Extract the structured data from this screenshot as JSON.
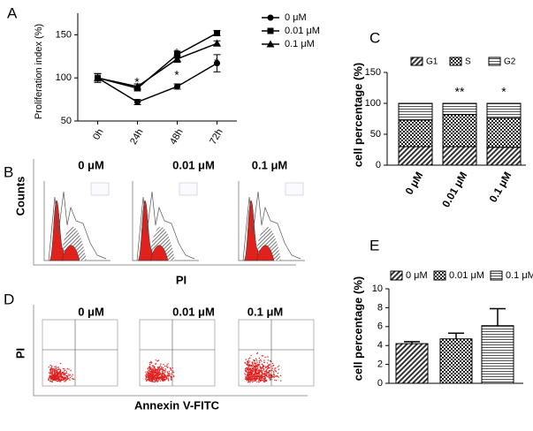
{
  "chart_data": [
    {
      "type": "line",
      "panel": "A",
      "y_label": "Proliferation index (%)",
      "categories": [
        "0h",
        "24h",
        "48h",
        "72h"
      ],
      "series": [
        {
          "name": "0 μM",
          "color": "#000000",
          "marker": "circle",
          "values": [
            100,
            72,
            90,
            117
          ],
          "errors": [
            5,
            3,
            3,
            10
          ]
        },
        {
          "name": "0.01 μM",
          "color": "#000000",
          "marker": "square",
          "values": [
            100,
            88,
            127,
            152
          ],
          "errors": [
            5,
            3,
            4,
            3
          ]
        },
        {
          "name": "0.1 μM",
          "color": "#000000",
          "marker": "triangle",
          "values": [
            100,
            90,
            122,
            140
          ],
          "errors": [
            5,
            3,
            4,
            3
          ]
        }
      ],
      "ylim": [
        50,
        175
      ],
      "yticks": [
        50,
        100,
        150
      ],
      "annotations": [
        {
          "category": "24h",
          "text": "*"
        },
        {
          "category": "48h",
          "text": "*"
        },
        {
          "category": "48h",
          "text": "*"
        },
        {
          "category": "72h",
          "text": "*"
        },
        {
          "category": "72h",
          "text": "*"
        }
      ]
    },
    {
      "type": "stacked_bar",
      "panel": "C",
      "y_label": "cell percentage (%)",
      "categories": [
        "0 μM",
        "0.01 μM",
        "0.1 μM"
      ],
      "series": [
        {
          "name": "G1",
          "pattern": "diagonal",
          "values": [
            30,
            30,
            29
          ]
        },
        {
          "name": "S",
          "pattern": "check",
          "values": [
            43,
            52,
            47
          ]
        },
        {
          "name": "G2",
          "pattern": "horizontal",
          "values": [
            27,
            18,
            24
          ]
        }
      ],
      "ylim": [
        0,
        150
      ],
      "yticks": [
        0,
        50,
        100,
        150
      ],
      "annotations": [
        {
          "category": "0.01 μM",
          "text": "**"
        },
        {
          "category": "0.1 μM",
          "text": "*"
        }
      ]
    },
    {
      "type": "bar",
      "panel": "E",
      "y_label": "cell percentage (%)",
      "series": [
        {
          "name": "0 μM",
          "pattern": "diagonal",
          "values": [
            4.2
          ],
          "errors": [
            0.2
          ]
        },
        {
          "name": "0.01 μM",
          "pattern": "check",
          "values": [
            4.7
          ],
          "errors": [
            0.6
          ]
        },
        {
          "name": "0.1 μM",
          "pattern": "horizontal",
          "values": [
            6.1
          ],
          "errors": [
            1.8
          ]
        }
      ],
      "ylim": [
        0,
        10
      ],
      "yticks": [
        0,
        2,
        4,
        6,
        8,
        10
      ]
    }
  ],
  "flow_panels": [
    {
      "panel": "B",
      "kind": "histogram",
      "conditions": [
        "0 μM",
        "0.01 μM",
        "0.1 μM"
      ],
      "x_label": "PI",
      "y_label": "Counts"
    },
    {
      "panel": "D",
      "kind": "scatter",
      "conditions": [
        "0 μM",
        "0.01 μM",
        "0.1 μM"
      ],
      "x_label": "Annexin V-FITC",
      "y_label": "PI"
    }
  ]
}
